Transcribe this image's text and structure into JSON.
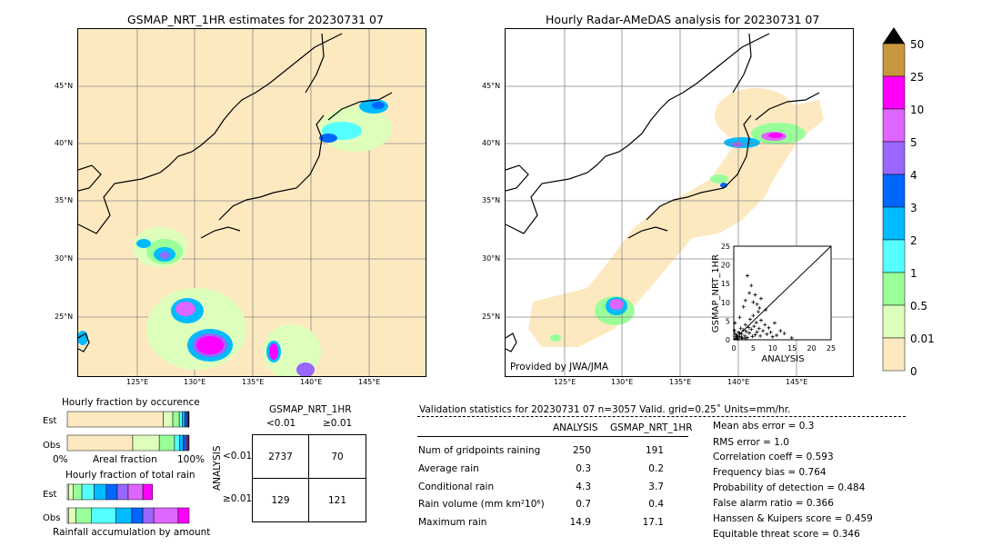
{
  "left_map": {
    "title": "GSMAP_NRT_1HR estimates for 20230731 07",
    "lat_labels": [
      "45°N",
      "40°N",
      "35°N",
      "30°N",
      "25°N"
    ],
    "lon_labels": [
      "125°E",
      "130°E",
      "135°E",
      "140°E",
      "145°E"
    ]
  },
  "right_map": {
    "title": "Hourly Radar-AMeDAS analysis for 20230731 07",
    "lat_labels": [
      "45°N",
      "40°N",
      "35°N",
      "30°N",
      "25°N"
    ],
    "lon_labels": [
      "125°E",
      "130°E",
      "135°E",
      "140°E",
      "145°E"
    ],
    "credit": "Provided by JWA/JMA"
  },
  "colorbar": {
    "labels": [
      "50",
      "25",
      "10",
      "5",
      "4",
      "3",
      "2",
      "1",
      "0.5",
      "0.01",
      "0"
    ],
    "colors": [
      "#c8963c",
      "#ff00ff",
      "#dd66ff",
      "#9966ff",
      "#0066ff",
      "#00bbff",
      "#55ffff",
      "#99ff99",
      "#ddffbb",
      "#fde9c0"
    ]
  },
  "fraction_occurrence": {
    "title": "Hourly fraction by occurence",
    "row_labels": [
      "Est",
      "Obs"
    ],
    "axis_left": "0%",
    "axis_mid": "Areal fraction",
    "axis_right": "100%"
  },
  "fraction_total": {
    "title": "Hourly fraction of total rain",
    "row_labels": [
      "Est",
      "Obs"
    ],
    "axis_label": "Rainfall accumulation by amount"
  },
  "contingency": {
    "title": "GSMAP_NRT_1HR",
    "col_headers": [
      "<0.01",
      "≥0.01"
    ],
    "row_headers": [
      "<0.01",
      "≥0.01"
    ],
    "side_label": "ANALYSIS",
    "cells": [
      [
        "2737",
        "70"
      ],
      [
        "129",
        "121"
      ]
    ]
  },
  "validation": {
    "header": "Validation statistics for 20230731 07  n=3057 Valid. grid=0.25˚ Units=mm/hr.",
    "col_headers": [
      "ANALYSIS",
      "GSMAP_NRT_1HR"
    ],
    "rows": [
      {
        "label": "Num of gridpoints raining",
        "analysis": "250",
        "gsmap": "191"
      },
      {
        "label": "Average rain",
        "analysis": "0.3",
        "gsmap": "0.2"
      },
      {
        "label": "Conditional rain",
        "analysis": "4.3",
        "gsmap": "3.7"
      },
      {
        "label": "Rain volume (mm km²10⁶)",
        "analysis": "0.7",
        "gsmap": "0.4"
      },
      {
        "label": "Maximum rain",
        "analysis": "14.9",
        "gsmap": "17.1"
      }
    ],
    "scores": [
      "Mean abs error =    0.3",
      "RMS error =    1.0",
      "Correlation coeff =  0.593",
      "Frequency bias =  0.764",
      "Probability of detection =  0.484",
      "False alarm ratio =  0.366",
      "Hanssen & Kuipers score =  0.459",
      "Equitable threat score =  0.346"
    ]
  },
  "chart_data": [
    {
      "type": "scatter",
      "xlabel": "ANALYSIS",
      "ylabel": "GSMAP_NRT_1HR",
      "xlim": [
        0,
        25
      ],
      "ylim": [
        0,
        25
      ],
      "ticks": [
        "0",
        "5",
        "10",
        "15",
        "20",
        "25"
      ],
      "points": [
        [
          0.5,
          0.3
        ],
        [
          0.8,
          1.2
        ],
        [
          1.0,
          0.5
        ],
        [
          1.2,
          2.0
        ],
        [
          1.5,
          0.8
        ],
        [
          1.8,
          3.1
        ],
        [
          2.0,
          1.5
        ],
        [
          2.2,
          0.4
        ],
        [
          2.5,
          2.6
        ],
        [
          2.8,
          1.0
        ],
        [
          3.0,
          4.0
        ],
        [
          3.2,
          2.2
        ],
        [
          3.5,
          0.6
        ],
        [
          3.8,
          3.3
        ],
        [
          4.0,
          1.8
        ],
        [
          4.2,
          5.5
        ],
        [
          4.5,
          2.8
        ],
        [
          4.8,
          0.9
        ],
        [
          5.0,
          6.5
        ],
        [
          5.2,
          3.6
        ],
        [
          5.5,
          1.3
        ],
        [
          5.8,
          4.6
        ],
        [
          6.0,
          2.1
        ],
        [
          6.3,
          7.5
        ],
        [
          6.5,
          3.0
        ],
        [
          6.8,
          1.0
        ],
        [
          7.0,
          5.2
        ],
        [
          7.5,
          2.4
        ],
        [
          8.0,
          4.0
        ],
        [
          8.5,
          1.5
        ],
        [
          9.0,
          3.2
        ],
        [
          9.5,
          2.0
        ],
        [
          10.0,
          0.8
        ],
        [
          10.5,
          4.5
        ],
        [
          11.0,
          1.2
        ],
        [
          12.0,
          2.4
        ],
        [
          13.0,
          1.7
        ],
        [
          14.9,
          0.5
        ],
        [
          3.5,
          17.1
        ],
        [
          4.5,
          14.5
        ],
        [
          5.5,
          12.0
        ],
        [
          3.0,
          10.5
        ],
        [
          6.0,
          9.5
        ],
        [
          2.5,
          8.8
        ],
        [
          4.0,
          12.5
        ],
        [
          7.0,
          11.0
        ],
        [
          5.0,
          10.0
        ],
        [
          1.5,
          6.0
        ],
        [
          0.3,
          4.5
        ],
        [
          0.2,
          2.5
        ],
        [
          1.0,
          0.2
        ],
        [
          0.6,
          0.9
        ],
        [
          2.0,
          0.6
        ],
        [
          1.5,
          1.8
        ],
        [
          0.4,
          1.6
        ],
        [
          3.0,
          0.3
        ],
        [
          8.2,
          8.0
        ],
        [
          6.6,
          8.5
        ]
      ]
    },
    {
      "type": "bar",
      "title": "Hourly fraction by occurence",
      "categories": [
        "Est",
        "Obs"
      ],
      "series": [
        {
          "color": "#fde9c0",
          "values": [
            0.787,
            0.537
          ]
        },
        {
          "color": "#ddffbb",
          "values": [
            0.079,
            0.218
          ]
        },
        {
          "color": "#99ff99",
          "values": [
            0.053,
            0.125
          ]
        },
        {
          "color": "#55ffff",
          "values": [
            0.026,
            0.04
          ]
        },
        {
          "color": "#00bbff",
          "values": [
            0.02,
            0.03
          ]
        },
        {
          "color": "#0066ff",
          "values": [
            0.015,
            0.02
          ]
        },
        {
          "color": "#9966ff",
          "values": [
            0.008,
            0.012
          ]
        },
        {
          "color": "#dd66ff",
          "values": [
            0.006,
            0.008
          ]
        },
        {
          "color": "#ff00ff",
          "values": [
            0.004,
            0.006
          ]
        },
        {
          "color": "#c8963c",
          "values": [
            0.002,
            0.004
          ]
        }
      ]
    },
    {
      "type": "bar",
      "title": "Hourly fraction of total rain",
      "categories": [
        "Est",
        "Obs"
      ],
      "series": [
        {
          "color": "#fde9c0",
          "values": [
            0.01,
            0.01
          ]
        },
        {
          "color": "#ddffbb",
          "values": [
            0.04,
            0.06
          ]
        },
        {
          "color": "#99ff99",
          "values": [
            0.07,
            0.13
          ]
        },
        {
          "color": "#55ffff",
          "values": [
            0.1,
            0.2
          ]
        },
        {
          "color": "#00bbff",
          "values": [
            0.1,
            0.13
          ]
        },
        {
          "color": "#0066ff",
          "values": [
            0.09,
            0.09
          ]
        },
        {
          "color": "#9966ff",
          "values": [
            0.09,
            0.09
          ]
        },
        {
          "color": "#dd66ff",
          "values": [
            0.12,
            0.2
          ]
        },
        {
          "color": "#ff00ff",
          "values": [
            0.08,
            0.09
          ]
        },
        {
          "color": "#c8963c",
          "values": [
            0.0,
            0.0
          ]
        }
      ]
    }
  ]
}
